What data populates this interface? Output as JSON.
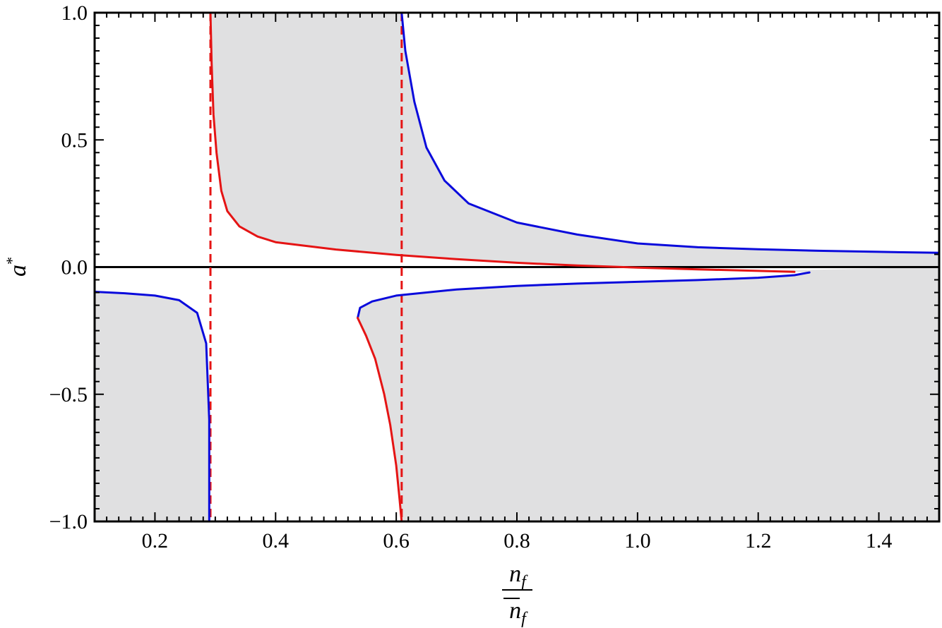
{
  "chart_data": {
    "type": "line",
    "title": "",
    "xlabel": {
      "numerator": "n",
      "numerator_sub": "f",
      "denominator": "n",
      "denominator_sub": "f"
    },
    "ylabel": {
      "base": "a",
      "sup": "*"
    },
    "xlim": [
      0.1,
      1.5
    ],
    "ylim": [
      -1.0,
      1.0
    ],
    "x_ticks": [
      0.2,
      0.4,
      0.6,
      0.8,
      1.0,
      1.2,
      1.4
    ],
    "x_tick_labels": [
      "0.2",
      "0.4",
      "0.6",
      "0.8",
      "1.0",
      "1.2",
      "1.4"
    ],
    "y_ticks": [
      -1.0,
      -0.5,
      0.0,
      0.5,
      1.0
    ],
    "y_tick_labels": [
      "−1.0",
      "−0.5",
      "0.0",
      "0.5",
      "1.0"
    ],
    "grid": false,
    "legend": "none",
    "colors": {
      "blue": "#0a0adc",
      "red": "#e51414",
      "shade": "#e0e0e1",
      "zero_line": "#000000"
    },
    "vertical_asymptotes": [
      0.292,
      0.609
    ],
    "series": [
      {
        "color": "blue",
        "points": [
          [
            0.1,
            -0.097
          ],
          [
            0.15,
            -0.103
          ],
          [
            0.2,
            -0.112
          ],
          [
            0.24,
            -0.13
          ],
          [
            0.27,
            -0.18
          ],
          [
            0.285,
            -0.3
          ],
          [
            0.29,
            -0.6
          ],
          [
            0.29,
            -1.0
          ]
        ]
      },
      {
        "color": "red",
        "points": [
          [
            0.292,
            1.0
          ],
          [
            0.294,
            0.8
          ],
          [
            0.297,
            0.6
          ],
          [
            0.302,
            0.45
          ],
          [
            0.31,
            0.3
          ],
          [
            0.32,
            0.22
          ],
          [
            0.34,
            0.16
          ],
          [
            0.37,
            0.12
          ],
          [
            0.4,
            0.098
          ],
          [
            0.5,
            0.069
          ],
          [
            0.6,
            0.048
          ],
          [
            0.7,
            0.031
          ],
          [
            0.8,
            0.017
          ],
          [
            0.9,
            0.006
          ],
          [
            1.0,
            -0.002
          ],
          [
            1.1,
            -0.009
          ],
          [
            1.2,
            -0.015
          ],
          [
            1.26,
            -0.019
          ]
        ]
      },
      {
        "color": "blue",
        "points": [
          [
            0.609,
            1.0
          ],
          [
            0.615,
            0.85
          ],
          [
            0.63,
            0.65
          ],
          [
            0.65,
            0.47
          ],
          [
            0.68,
            0.34
          ],
          [
            0.72,
            0.25
          ],
          [
            0.8,
            0.175
          ],
          [
            0.9,
            0.128
          ],
          [
            1.0,
            0.093
          ],
          [
            1.1,
            0.078
          ],
          [
            1.2,
            0.07
          ],
          [
            1.3,
            0.064
          ],
          [
            1.4,
            0.06
          ],
          [
            1.5,
            0.056
          ]
        ]
      },
      {
        "color": "blue",
        "points": [
          [
            0.536,
            -0.2
          ],
          [
            0.54,
            -0.16
          ],
          [
            0.56,
            -0.135
          ],
          [
            0.6,
            -0.112
          ],
          [
            0.7,
            -0.088
          ],
          [
            0.8,
            -0.074
          ],
          [
            0.9,
            -0.065
          ],
          [
            1.0,
            -0.058
          ],
          [
            1.1,
            -0.051
          ],
          [
            1.2,
            -0.042
          ],
          [
            1.26,
            -0.032
          ],
          [
            1.285,
            -0.021
          ]
        ]
      },
      {
        "color": "red",
        "points": [
          [
            0.536,
            -0.2
          ],
          [
            0.55,
            -0.27
          ],
          [
            0.565,
            -0.36
          ],
          [
            0.58,
            -0.5
          ],
          [
            0.59,
            -0.62
          ],
          [
            0.6,
            -0.78
          ],
          [
            0.605,
            -0.9
          ],
          [
            0.609,
            -1.0
          ]
        ]
      }
    ],
    "shaded_regions": [
      {
        "points": [
          [
            0.1,
            -1.0
          ],
          [
            0.1,
            -0.097
          ],
          [
            0.15,
            -0.103
          ],
          [
            0.2,
            -0.112
          ],
          [
            0.24,
            -0.13
          ],
          [
            0.27,
            -0.18
          ],
          [
            0.285,
            -0.3
          ],
          [
            0.29,
            -0.6
          ],
          [
            0.29,
            -1.0
          ]
        ]
      },
      {
        "points": [
          [
            0.292,
            1.0
          ],
          [
            0.609,
            1.0
          ],
          [
            0.615,
            0.85
          ],
          [
            0.63,
            0.65
          ],
          [
            0.65,
            0.47
          ],
          [
            0.68,
            0.34
          ],
          [
            0.72,
            0.25
          ],
          [
            0.8,
            0.175
          ],
          [
            0.9,
            0.128
          ],
          [
            1.0,
            0.093
          ],
          [
            1.1,
            0.078
          ],
          [
            1.2,
            0.07
          ],
          [
            1.3,
            0.064
          ],
          [
            1.4,
            0.06
          ],
          [
            1.5,
            0.056
          ],
          [
            1.5,
            0.0
          ],
          [
            1.0,
            -0.002
          ],
          [
            0.9,
            0.006
          ],
          [
            0.8,
            0.017
          ],
          [
            0.7,
            0.031
          ],
          [
            0.6,
            0.048
          ],
          [
            0.5,
            0.069
          ],
          [
            0.4,
            0.098
          ],
          [
            0.37,
            0.12
          ],
          [
            0.34,
            0.16
          ],
          [
            0.32,
            0.22
          ],
          [
            0.31,
            0.3
          ],
          [
            0.302,
            0.45
          ],
          [
            0.297,
            0.6
          ],
          [
            0.294,
            0.8
          ]
        ]
      },
      {
        "points": [
          [
            1.5,
            -1.0
          ],
          [
            1.5,
            0.0
          ],
          [
            1.2,
            -0.015
          ],
          [
            1.26,
            -0.019
          ],
          [
            1.285,
            -0.021
          ],
          [
            1.26,
            -0.032
          ],
          [
            1.2,
            -0.042
          ],
          [
            1.1,
            -0.051
          ],
          [
            1.0,
            -0.058
          ],
          [
            0.9,
            -0.065
          ],
          [
            0.8,
            -0.074
          ],
          [
            0.7,
            -0.088
          ],
          [
            0.6,
            -0.112
          ],
          [
            0.56,
            -0.135
          ],
          [
            0.54,
            -0.16
          ],
          [
            0.536,
            -0.2
          ],
          [
            0.55,
            -0.27
          ],
          [
            0.565,
            -0.36
          ],
          [
            0.58,
            -0.5
          ],
          [
            0.59,
            -0.62
          ],
          [
            0.6,
            -0.78
          ],
          [
            0.605,
            -0.9
          ],
          [
            0.609,
            -1.0
          ]
        ]
      }
    ]
  }
}
